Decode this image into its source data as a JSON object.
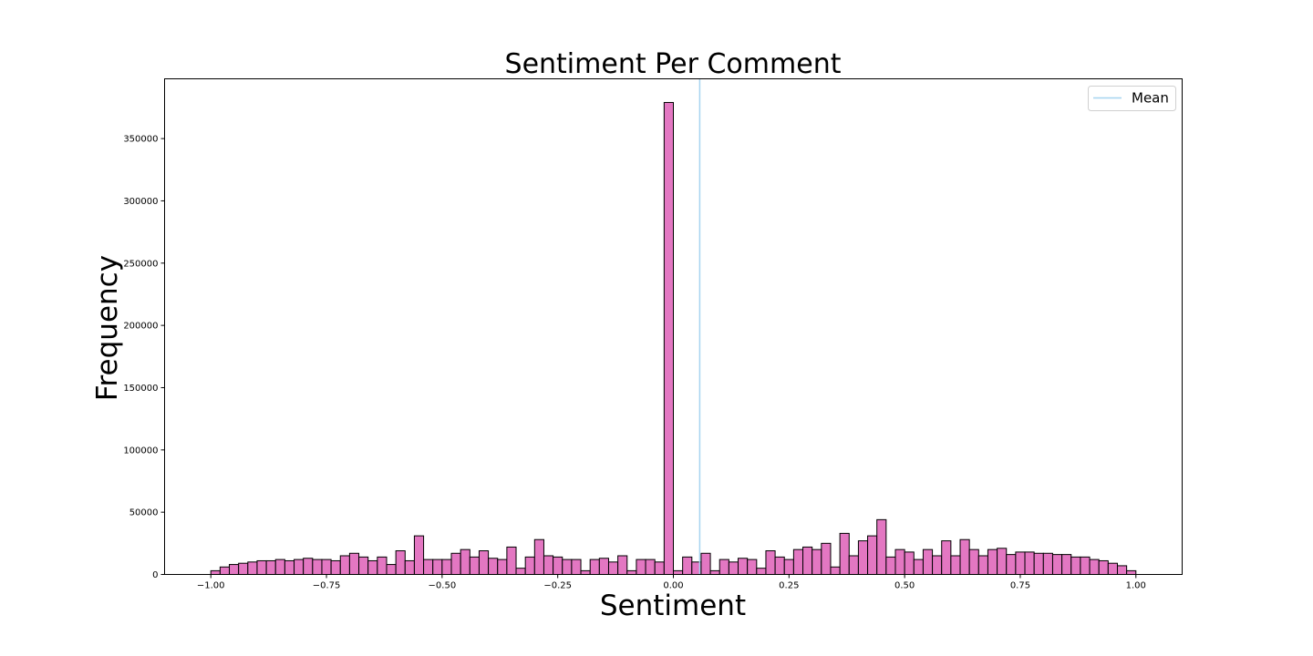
{
  "chart_data": {
    "type": "bar",
    "title": "Sentiment Per Comment",
    "xlabel": "Sentiment",
    "ylabel": "Frequency",
    "xlim": [
      -1.1,
      1.1
    ],
    "ylim": [
      0,
      398000
    ],
    "x_ticks": [
      -1.0,
      -0.75,
      -0.5,
      -0.25,
      0.0,
      0.25,
      0.5,
      0.75,
      1.0
    ],
    "x_tick_labels": [
      "−1.00",
      "−0.75",
      "−0.50",
      "−0.25",
      "0.00",
      "0.25",
      "0.50",
      "0.75",
      "1.00"
    ],
    "y_ticks": [
      0,
      50000,
      100000,
      150000,
      200000,
      250000,
      300000,
      350000
    ],
    "y_tick_labels": [
      "0",
      "50000",
      "100000",
      "150000",
      "200000",
      "250000",
      "300000",
      "350000"
    ],
    "bin_start": -1.0,
    "bin_width": 0.02,
    "values": [
      3000,
      6000,
      8000,
      9000,
      10000,
      11000,
      11000,
      12000,
      11000,
      12000,
      13000,
      12000,
      12000,
      11000,
      15000,
      17000,
      14000,
      11000,
      14000,
      8000,
      19000,
      11000,
      31000,
      12000,
      12000,
      12000,
      17000,
      20000,
      14000,
      19000,
      13000,
      12000,
      22000,
      5000,
      14000,
      28000,
      15000,
      14000,
      12000,
      12000,
      3000,
      12000,
      13000,
      10000,
      15000,
      3000,
      12000,
      12000,
      10000,
      379000,
      3000,
      14000,
      10000,
      17000,
      3000,
      12000,
      10000,
      13000,
      12000,
      5000,
      19000,
      14000,
      12000,
      20000,
      22000,
      20000,
      25000,
      6000,
      33000,
      15000,
      27000,
      31000,
      44000,
      14000,
      20000,
      18000,
      12000,
      20000,
      15000,
      27000,
      15000,
      28000,
      20000,
      15000,
      20000,
      21000,
      16000,
      18000,
      18000,
      17000,
      17000,
      16000,
      16000,
      14000,
      14000,
      12000,
      11000,
      9000,
      7000,
      3000
    ],
    "mean": 0.057,
    "mean_label": "Mean",
    "bar_color": "#e377c2",
    "edge_color": "#000000",
    "mean_color": "#a6d4f0",
    "legend_position": "top-right",
    "grid": false
  }
}
